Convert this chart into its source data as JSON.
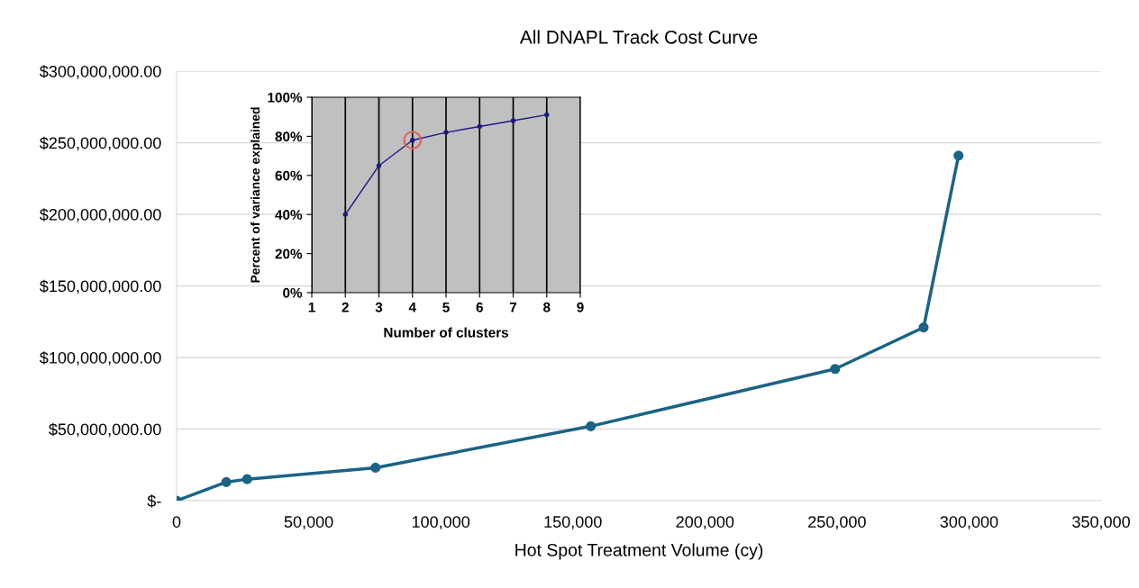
{
  "chart_data": [
    {
      "type": "line",
      "title": "All DNAPL Track Cost Curve",
      "xlabel": "Hot Spot Treatment Volume (cy)",
      "x": [
        0,
        18800,
        26700,
        75300,
        156800,
        249300,
        282800,
        296000
      ],
      "series": [
        {
          "color": "#1b6385",
          "values": [
            0,
            13000000,
            15000000,
            23000000,
            52000000,
            92000000,
            121000000,
            241000000
          ]
        }
      ],
      "xlim": [
        0,
        350000
      ],
      "xticks": [
        {
          "value": 0,
          "label": "0"
        },
        {
          "value": 50000,
          "label": "50,000"
        },
        {
          "value": 100000,
          "label": "100,000"
        },
        {
          "value": 150000,
          "label": "150,000"
        },
        {
          "value": 200000,
          "label": "200,000"
        },
        {
          "value": 250000,
          "label": "250,000"
        },
        {
          "value": 300000,
          "label": "300,000"
        },
        {
          "value": 350000,
          "label": "350,000"
        }
      ],
      "ylim": [
        0,
        300000000
      ],
      "yticks": [
        {
          "value": 0,
          "label": "$-"
        },
        {
          "value": 50000000,
          "label": "$50,000,000.00"
        },
        {
          "value": 100000000,
          "label": "$100,000,000.00"
        },
        {
          "value": 150000000,
          "label": "$150,000,000.00"
        },
        {
          "value": 200000000,
          "label": "$200,000,000.00"
        },
        {
          "value": 250000000,
          "label": "$250,000,000.00"
        },
        {
          "value": 300000000,
          "label": "$300,000,000.00"
        }
      ],
      "grid": "y",
      "marker": "circle",
      "line_style": "solid"
    },
    {
      "type": "line",
      "xlabel": "Number of clusters",
      "ylabel": "Percent of variance explained",
      "x": [
        2,
        3,
        4,
        5,
        6,
        7,
        8
      ],
      "series": [
        {
          "color": "#1a1a80",
          "values": [
            40,
            65,
            78,
            82,
            85,
            88,
            91
          ]
        },
        {
          "type": "scatter",
          "color": "#e06060",
          "x": [
            4
          ],
          "values": [
            78
          ]
        }
      ],
      "xlim": [
        1,
        9
      ],
      "xticks": [
        1,
        2,
        3,
        4,
        5,
        6,
        7,
        8,
        9
      ],
      "ylim": [
        0,
        100
      ],
      "yticks": [
        {
          "value": 0,
          "label": "0%"
        },
        {
          "value": 20,
          "label": "20%"
        },
        {
          "value": 40,
          "label": "40%"
        },
        {
          "value": 60,
          "label": "60%"
        },
        {
          "value": 80,
          "label": "80%"
        },
        {
          "value": 100,
          "label": "100%"
        }
      ],
      "grid": "x",
      "marker": "circle",
      "line_style": "solid"
    }
  ]
}
